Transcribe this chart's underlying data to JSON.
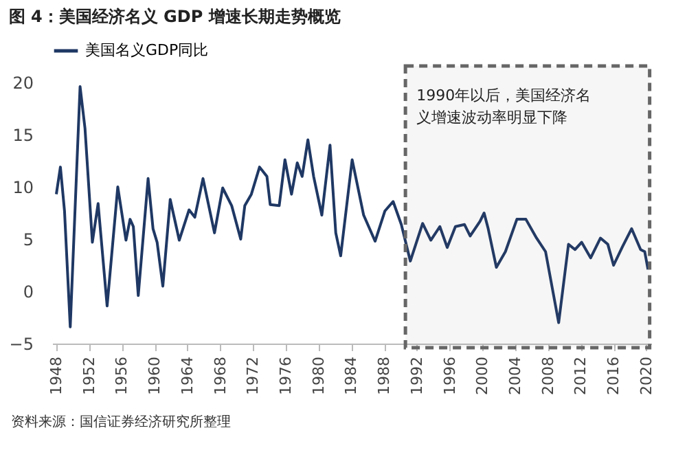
{
  "chart_data": {
    "type": "line",
    "title": "图 4：美国经济名义 GDP 增速长期走势概览",
    "x": [
      1948.0,
      1948.5,
      1949.0,
      1949.7,
      1950.9,
      1951.5,
      1952.4,
      1953.1,
      1954.2,
      1955.5,
      1956.5,
      1957.0,
      1957.4,
      1958.0,
      1959.2,
      1959.8,
      1960.3,
      1961.0,
      1961.9,
      1963.0,
      1964.2,
      1964.9,
      1965.9,
      1967.3,
      1968.3,
      1969.4,
      1970.5,
      1971.0,
      1971.8,
      1972.8,
      1973.7,
      1974.1,
      1975.2,
      1975.9,
      1976.7,
      1977.4,
      1978.0,
      1978.7,
      1979.4,
      1980.4,
      1981.4,
      1982.1,
      1982.7,
      1984.1,
      1985.5,
      1986.9,
      1988.1,
      1989.1,
      1990.1,
      1991.2,
      1992.7,
      1993.7,
      1994.8,
      1995.7,
      1996.7,
      1997.8,
      1998.5,
      1999.7,
      2000.2,
      2000.7,
      2001.7,
      2002.8,
      2004.2,
      2005.3,
      2006.6,
      2007.7,
      2009.3,
      2010.5,
      2011.3,
      2012.1,
      2013.2,
      2014.4,
      2015.3,
      2016.0,
      2017.1,
      2018.2,
      2019.3,
      2019.8,
      2020.2
    ],
    "series": [
      {
        "name": "美国名义GDP同比",
        "color": "#1f3864",
        "values": [
          9.3,
          11.9,
          7.7,
          -3.4,
          19.6,
          15.6,
          4.7,
          8.4,
          -1.4,
          10.0,
          4.9,
          6.9,
          6.2,
          -0.4,
          10.8,
          6.0,
          4.7,
          0.5,
          8.8,
          4.9,
          7.8,
          7.1,
          10.8,
          5.6,
          9.9,
          8.2,
          5.0,
          8.2,
          9.3,
          11.9,
          11.0,
          8.3,
          8.2,
          12.6,
          9.3,
          12.3,
          11.0,
          14.5,
          11.0,
          7.3,
          14.0,
          5.6,
          3.4,
          12.6,
          7.3,
          4.8,
          7.7,
          8.6,
          6.4,
          2.9,
          6.5,
          4.9,
          6.2,
          4.2,
          6.2,
          6.4,
          5.3,
          6.7,
          7.5,
          6.0,
          2.3,
          3.8,
          6.9,
          6.9,
          5.1,
          3.8,
          -3.0,
          4.5,
          4.0,
          4.7,
          3.2,
          5.1,
          4.5,
          2.5,
          4.3,
          6.0,
          4.0,
          3.8,
          2.1
        ]
      }
    ],
    "xlim": [
      1947.5,
      2020.6
    ],
    "xticks": [
      1948,
      1952,
      1956,
      1960,
      1964,
      1968,
      1972,
      1976,
      1980,
      1984,
      1988,
      1992,
      1996,
      2000,
      2004,
      2008,
      2012,
      2016,
      2020
    ],
    "ylim": [
      -5,
      20
    ],
    "yticks": [
      -5,
      0,
      5,
      10,
      15,
      20
    ],
    "legend": "top",
    "grid": false,
    "line_style": "solid",
    "marker": "none",
    "bands": [
      {
        "axis": "x",
        "from": 1990.6,
        "to": 2020.4,
        "label": "1990年以后，美国经济名义增速波动率明显下降",
        "color": "#666666"
      }
    ],
    "annotations": [
      "资料来源：国信证券经济研究所整理"
    ]
  }
}
